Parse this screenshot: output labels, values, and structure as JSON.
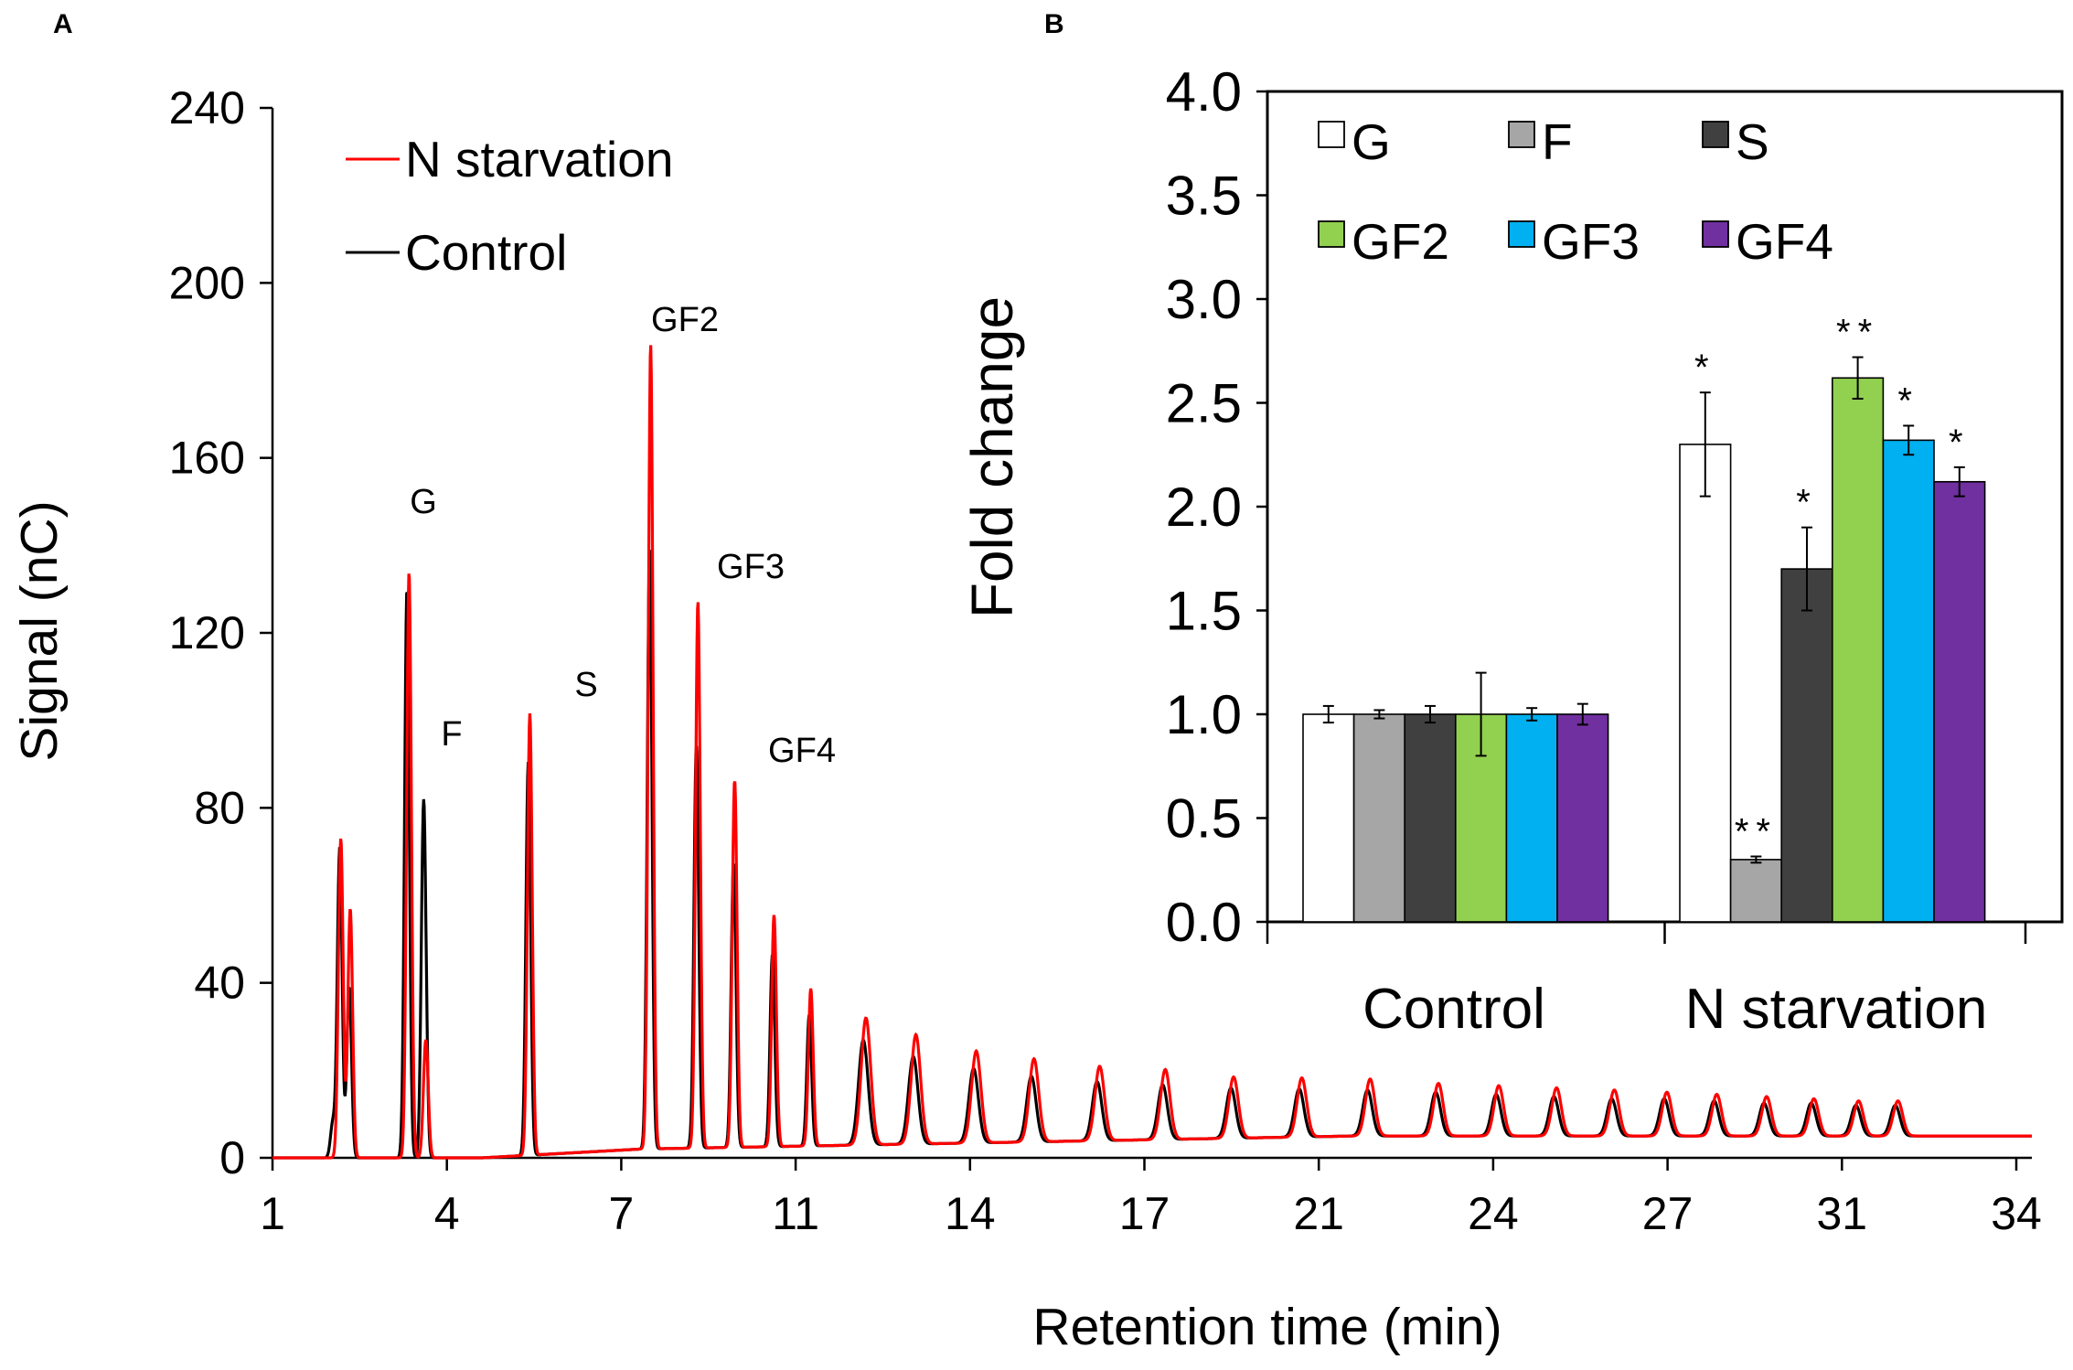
{
  "chart_data": [
    {
      "panel": "A",
      "type": "line",
      "ylabel": "Signal (nC)",
      "xlabel": "Retention time (min)",
      "ylim": [
        0,
        240
      ],
      "yticks": [
        0,
        40,
        80,
        120,
        160,
        200,
        240
      ],
      "xtick_labels": [
        "1",
        "4",
        "7",
        "11",
        "14",
        "17",
        "21",
        "24",
        "27",
        "31",
        "34"
      ],
      "legend": [
        {
          "name": "N starvation",
          "color": "#ff0000"
        },
        {
          "name": "Control",
          "color": "#000000"
        }
      ],
      "peak_labels": [
        "G",
        "F",
        "S",
        "GF2",
        "GF3",
        "GF4"
      ],
      "series": [
        {
          "name": "N starvation",
          "color": "#ff0000",
          "baseline": 0,
          "peaks": [
            {
              "x": 2.3,
              "y": 73
            },
            {
              "x": 2.48,
              "y": 57
            },
            {
              "x": 3.6,
              "y": 134
            },
            {
              "x": 3.92,
              "y": 27
            },
            {
              "x": 5.9,
              "y": 101
            },
            {
              "x": 8.2,
              "y": 184
            },
            {
              "x": 9.1,
              "y": 125
            },
            {
              "x": 9.8,
              "y": 84
            },
            {
              "x": 10.55,
              "y": 53
            },
            {
              "x": 11.25,
              "y": 36
            },
            {
              "x": 12.3,
              "y": 29
            },
            {
              "x": 13.25,
              "y": 25
            },
            {
              "x": 14.4,
              "y": 21
            },
            {
              "x": 15.5,
              "y": 19
            },
            {
              "x": 16.75,
              "y": 17
            },
            {
              "x": 18.0,
              "y": 16
            },
            {
              "x": 19.3,
              "y": 14
            },
            {
              "x": 20.6,
              "y": 13.5
            },
            {
              "x": 21.9,
              "y": 13
            },
            {
              "x": 23.2,
              "y": 12
            },
            {
              "x": 24.35,
              "y": 11.5
            },
            {
              "x": 25.45,
              "y": 11
            },
            {
              "x": 26.55,
              "y": 10.5
            },
            {
              "x": 27.55,
              "y": 10
            },
            {
              "x": 28.5,
              "y": 9.5
            },
            {
              "x": 29.45,
              "y": 9
            },
            {
              "x": 30.35,
              "y": 8.5
            },
            {
              "x": 31.2,
              "y": 8
            },
            {
              "x": 31.95,
              "y": 8
            }
          ]
        },
        {
          "name": "Control",
          "color": "#000000",
          "baseline": 0,
          "peaks": [
            {
              "x": 2.15,
              "y": 8
            },
            {
              "x": 2.28,
              "y": 71
            },
            {
              "x": 2.46,
              "y": 39
            },
            {
              "x": 3.56,
              "y": 130
            },
            {
              "x": 3.88,
              "y": 82
            },
            {
              "x": 5.87,
              "y": 90
            },
            {
              "x": 8.18,
              "y": 137
            },
            {
              "x": 9.07,
              "y": 92
            },
            {
              "x": 9.78,
              "y": 65
            },
            {
              "x": 10.52,
              "y": 44
            },
            {
              "x": 11.22,
              "y": 30
            },
            {
              "x": 12.25,
              "y": 24
            },
            {
              "x": 13.2,
              "y": 20
            },
            {
              "x": 14.35,
              "y": 17
            },
            {
              "x": 15.45,
              "y": 15
            },
            {
              "x": 16.7,
              "y": 13.5
            },
            {
              "x": 17.95,
              "y": 12.5
            },
            {
              "x": 19.25,
              "y": 11.5
            },
            {
              "x": 20.55,
              "y": 11
            },
            {
              "x": 21.85,
              "y": 10.5
            },
            {
              "x": 23.15,
              "y": 10
            },
            {
              "x": 24.3,
              "y": 9.5
            },
            {
              "x": 25.4,
              "y": 9
            },
            {
              "x": 26.5,
              "y": 8.5
            },
            {
              "x": 27.5,
              "y": 8.5
            },
            {
              "x": 28.45,
              "y": 8
            },
            {
              "x": 29.4,
              "y": 7.5
            },
            {
              "x": 30.3,
              "y": 7.5
            },
            {
              "x": 31.15,
              "y": 7
            },
            {
              "x": 31.9,
              "y": 7
            }
          ]
        }
      ]
    },
    {
      "panel": "B",
      "type": "bar",
      "ylabel": "Fold change",
      "ylim": [
        0,
        4.0
      ],
      "yticks": [
        "0.0",
        "0.5",
        "1.0",
        "1.5",
        "2.0",
        "2.5",
        "3.0",
        "3.5",
        "4.0"
      ],
      "categories": [
        "Control",
        "N starvation"
      ],
      "series": [
        {
          "name": "G",
          "color": "#ffffff",
          "values": [
            1.0,
            2.3
          ],
          "errors": [
            0.04,
            0.25
          ],
          "sig": [
            "",
            "*"
          ]
        },
        {
          "name": "F",
          "color": "#a6a6a6",
          "values": [
            1.0,
            0.3
          ],
          "errors": [
            0.02,
            0.015
          ],
          "sig": [
            "",
            "**"
          ]
        },
        {
          "name": "S",
          "color": "#404040",
          "values": [
            1.0,
            1.7
          ],
          "errors": [
            0.04,
            0.2
          ],
          "sig": [
            "",
            "*"
          ]
        },
        {
          "name": "GF2",
          "color": "#92d050",
          "values": [
            1.0,
            2.62
          ],
          "errors": [
            0.2,
            0.1
          ],
          "sig": [
            "",
            "**"
          ]
        },
        {
          "name": "GF3",
          "color": "#00b0f0",
          "values": [
            1.0,
            2.32
          ],
          "errors": [
            0.03,
            0.07
          ],
          "sig": [
            "",
            "*"
          ]
        },
        {
          "name": "GF4",
          "color": "#7030a0",
          "values": [
            1.0,
            2.12
          ],
          "errors": [
            0.05,
            0.07
          ],
          "sig": [
            "",
            "*"
          ]
        }
      ]
    }
  ]
}
